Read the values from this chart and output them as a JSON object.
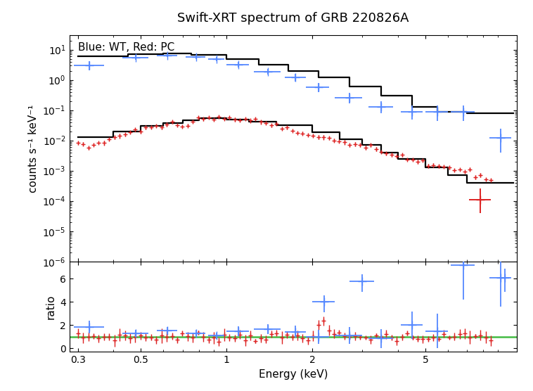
{
  "title": "Swift-XRT spectrum of GRB 220826A",
  "subtitle": "Blue: WT, Red: PC",
  "xlabel": "Energy (keV)",
  "ylabel": "counts s⁻¹ keV⁻¹",
  "ylabel_ratio": "ratio",
  "title_fontsize": 13,
  "label_fontsize": 11,
  "tick_fontsize": 10,
  "wt_color": "#5588ff",
  "pc_color": "#dd2222",
  "model_color": "#000000",
  "ratio_line_color": "#44bb44",
  "xlim": [
    0.28,
    10.5
  ],
  "ylim_spec_lo": 1e-06,
  "ylim_spec_hi": 30.0,
  "ylim_ratio_lo": -0.3,
  "ylim_ratio_hi": 7.5,
  "hist_e_wt": [
    0.3,
    0.45,
    0.6,
    0.75,
    1.0,
    1.3,
    1.65,
    2.1,
    2.7,
    3.5,
    4.5,
    5.5,
    7.0,
    10.2
  ],
  "hist_v_wt": [
    6.0,
    7.2,
    7.5,
    6.8,
    4.8,
    3.2,
    2.0,
    1.2,
    0.62,
    0.3,
    0.13,
    0.09,
    0.08
  ],
  "hist_e_pc": [
    0.3,
    0.4,
    0.5,
    0.6,
    0.7,
    0.8,
    1.0,
    1.2,
    1.5,
    2.0,
    2.5,
    3.0,
    3.5,
    4.0,
    5.0,
    6.0,
    7.0,
    10.2
  ],
  "hist_v_pc": [
    0.013,
    0.02,
    0.03,
    0.038,
    0.046,
    0.053,
    0.05,
    0.042,
    0.032,
    0.019,
    0.011,
    0.007,
    0.004,
    0.0025,
    0.0013,
    0.0007,
    0.0004
  ],
  "wt_energies": [
    0.33,
    0.48,
    0.62,
    0.78,
    0.92,
    1.1,
    1.4,
    1.75,
    2.1,
    2.7,
    3.5,
    4.5,
    5.5,
    6.8,
    9.2
  ],
  "wt_counts": [
    3.0,
    5.5,
    6.5,
    5.8,
    4.8,
    3.2,
    1.9,
    1.2,
    0.58,
    0.26,
    0.13,
    0.09,
    0.09,
    0.09,
    0.012
  ],
  "wt_xerr_lo": [
    0.04,
    0.05,
    0.05,
    0.06,
    0.06,
    0.1,
    0.15,
    0.15,
    0.2,
    0.3,
    0.35,
    0.4,
    0.5,
    0.65,
    0.8
  ],
  "wt_xerr_hi": [
    0.04,
    0.05,
    0.05,
    0.06,
    0.06,
    0.1,
    0.15,
    0.15,
    0.2,
    0.3,
    0.35,
    0.4,
    0.5,
    0.65,
    0.8
  ],
  "wt_yerr_lo": [
    0.9,
    0.9,
    0.85,
    0.8,
    0.7,
    0.65,
    0.38,
    0.3,
    0.18,
    0.09,
    0.05,
    0.04,
    0.045,
    0.045,
    0.008
  ],
  "wt_yerr_hi": [
    1.2,
    1.2,
    1.0,
    0.9,
    0.8,
    0.75,
    0.45,
    0.38,
    0.22,
    0.12,
    0.07,
    0.05,
    0.055,
    0.055,
    0.012
  ],
  "pc_high_e": 7.8,
  "pc_high_val": 0.00011,
  "pc_high_xerr_lo": 0.7,
  "pc_high_xerr_hi": 0.7,
  "pc_high_yerr_lo": 7e-05,
  "pc_high_yerr_hi": 0.00015,
  "wt_ratio": [
    1.85,
    1.3,
    1.55,
    1.3,
    1.1,
    1.5,
    1.65,
    1.45,
    1.0,
    1.1,
    0.85,
    2.0,
    1.5,
    7.2,
    6.1
  ],
  "wt_ratio_err": [
    0.55,
    0.32,
    0.32,
    0.28,
    0.28,
    0.42,
    0.42,
    0.52,
    0.62,
    0.72,
    0.82,
    1.2,
    1.5,
    3.0,
    2.5
  ],
  "ratio_blue_extra_e": [
    2.2,
    3.0,
    9.5
  ],
  "ratio_blue_extra_val": [
    4.0,
    5.8,
    6.1
  ],
  "ratio_blue_extra_xerr": [
    0.2,
    0.3,
    0.4
  ],
  "ratio_blue_extra_yerr": [
    1.5,
    1.5,
    2.0
  ]
}
